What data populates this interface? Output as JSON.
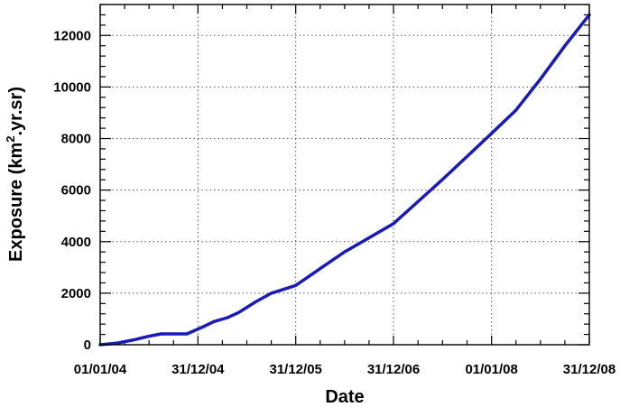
{
  "chart_data": {
    "type": "line",
    "title": "",
    "xlabel": "Date",
    "ylabel": {
      "prefix": "Exposure (km",
      "superscript": "2",
      "suffix": ".yr.sr)"
    },
    "ylim": [
      0,
      13200
    ],
    "yticks": [
      0,
      2000,
      4000,
      6000,
      8000,
      10000,
      12000
    ],
    "xlim": [
      "2004-01-01",
      "2008-12-31"
    ],
    "xticks": [
      {
        "date": "2004-01-01",
        "label": "01/01/04"
      },
      {
        "date": "2004-12-31",
        "label": "31/12/04"
      },
      {
        "date": "2005-12-31",
        "label": "31/12/05"
      },
      {
        "date": "2006-12-31",
        "label": "31/12/06"
      },
      {
        "date": "2008-01-01",
        "label": "01/01/08"
      },
      {
        "date": "2008-12-31",
        "label": "31/12/08"
      }
    ],
    "grid": true,
    "line_color": "#1a1ab8",
    "series": [
      {
        "x": [
          "2004-01-01",
          "2004-03-01",
          "2004-05-01",
          "2004-07-01",
          "2004-08-15",
          "2004-10-15",
          "2004-11-20",
          "2005-01-20",
          "2005-03-01",
          "2005-04-20",
          "2005-06-01",
          "2005-08-01",
          "2005-10-01",
          "2005-12-31",
          "2006-04-01",
          "2006-07-01",
          "2006-10-01",
          "2006-12-31",
          "2007-04-01",
          "2007-07-01",
          "2007-10-01",
          "2008-01-01",
          "2008-04-01",
          "2008-07-01",
          "2008-10-01",
          "2008-12-31"
        ],
        "y": [
          0,
          60,
          180,
          330,
          420,
          420,
          420,
          700,
          900,
          1050,
          1250,
          1650,
          2000,
          2300,
          2950,
          3600,
          4150,
          4700,
          5550,
          6400,
          7300,
          8200,
          9100,
          10300,
          11600,
          12800
        ]
      }
    ]
  }
}
